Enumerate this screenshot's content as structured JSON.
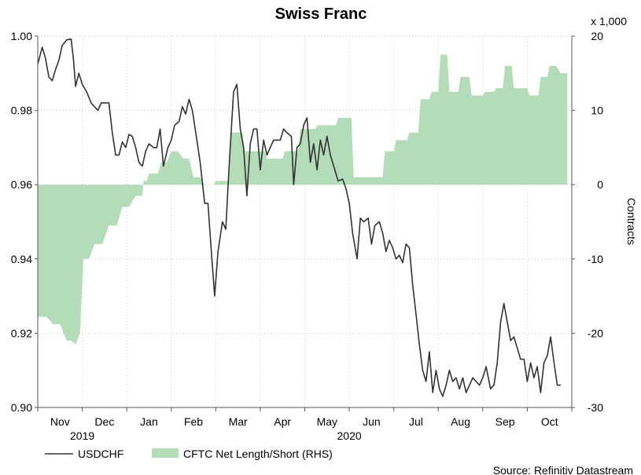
{
  "chart_data": {
    "type": "line",
    "title": "Swiss Franc",
    "source": "Source: Refinitiv Datastream",
    "right_axis_unit": "x 1,000",
    "right_axis_label": "Contracts",
    "left_axis": {
      "min": 0.9,
      "max": 1.0,
      "ticks": [
        "0.90",
        "0.92",
        "0.94",
        "0.96",
        "0.98",
        "1.00"
      ]
    },
    "right_axis": {
      "min": -30,
      "max": 20,
      "ticks": [
        "-30",
        "-20",
        "-10",
        "0",
        "10",
        "20"
      ]
    },
    "months": [
      "Nov",
      "Dec",
      "Jan",
      "Feb",
      "Mar",
      "Apr",
      "May",
      "Jun",
      "Jul",
      "Aug",
      "Sep",
      "Oct"
    ],
    "years": [
      "2019",
      "2020"
    ],
    "legend": {
      "line": "USDCHF",
      "area": "CFTC Net Length/Short (RHS)"
    },
    "colors": {
      "line": "#333333",
      "area": "#b5dcb8",
      "grid": "#cccccc"
    },
    "series_usdchf": [
      [
        0.0,
        0.9925
      ],
      [
        0.2,
        0.997
      ],
      [
        0.35,
        0.994
      ],
      [
        0.5,
        0.989
      ],
      [
        0.65,
        0.988
      ],
      [
        0.8,
        0.991
      ],
      [
        0.95,
        0.9935
      ],
      [
        1.1,
        0.9975
      ],
      [
        1.3,
        0.999
      ],
      [
        1.5,
        0.9992
      ],
      [
        1.6,
        0.994
      ],
      [
        1.7,
        0.9865
      ],
      [
        1.85,
        0.99
      ],
      [
        2.0,
        0.987
      ],
      [
        2.2,
        0.985
      ],
      [
        2.4,
        0.982
      ],
      [
        2.55,
        0.981
      ],
      [
        2.7,
        0.98
      ],
      [
        2.85,
        0.982
      ],
      [
        3.0,
        0.982
      ],
      [
        3.2,
        0.982
      ],
      [
        3.35,
        0.974
      ],
      [
        3.5,
        0.968
      ],
      [
        3.65,
        0.968
      ],
      [
        3.8,
        0.9715
      ],
      [
        3.95,
        0.97
      ],
      [
        4.1,
        0.9735
      ],
      [
        4.25,
        0.973
      ],
      [
        4.4,
        0.97
      ],
      [
        4.55,
        0.966
      ],
      [
        4.7,
        0.965
      ],
      [
        4.85,
        0.969
      ],
      [
        5.0,
        0.971
      ],
      [
        5.2,
        0.97
      ],
      [
        5.35,
        0.97
      ],
      [
        5.5,
        0.975
      ],
      [
        5.65,
        0.965
      ],
      [
        5.85,
        0.97
      ],
      [
        6.0,
        0.972
      ],
      [
        6.15,
        0.976
      ],
      [
        6.35,
        0.977
      ],
      [
        6.5,
        0.981
      ],
      [
        6.65,
        0.979
      ],
      [
        6.8,
        0.983
      ],
      [
        6.95,
        0.98
      ],
      [
        7.1,
        0.974
      ],
      [
        7.3,
        0.966
      ],
      [
        7.5,
        0.955
      ],
      [
        7.65,
        0.955
      ],
      [
        7.8,
        0.942
      ],
      [
        7.95,
        0.93
      ],
      [
        8.1,
        0.942
      ],
      [
        8.3,
        0.95
      ],
      [
        8.45,
        0.948
      ],
      [
        8.6,
        0.965
      ],
      [
        8.8,
        0.985
      ],
      [
        8.95,
        0.987
      ],
      [
        9.1,
        0.975
      ],
      [
        9.25,
        0.97
      ],
      [
        9.4,
        0.957
      ],
      [
        9.55,
        0.971
      ],
      [
        9.7,
        0.975
      ],
      [
        9.85,
        0.975
      ],
      [
        10.0,
        0.964
      ],
      [
        10.15,
        0.972
      ],
      [
        10.3,
        0.968
      ],
      [
        10.45,
        0.97
      ],
      [
        10.6,
        0.972
      ],
      [
        10.75,
        0.972
      ],
      [
        10.9,
        0.972
      ],
      [
        11.05,
        0.975
      ],
      [
        11.2,
        0.974
      ],
      [
        11.4,
        0.973
      ],
      [
        11.5,
        0.96
      ],
      [
        11.65,
        0.97
      ],
      [
        11.8,
        0.971
      ],
      [
        11.95,
        0.976
      ],
      [
        12.1,
        0.978
      ],
      [
        12.25,
        0.966
      ],
      [
        12.4,
        0.971
      ],
      [
        12.55,
        0.964
      ],
      [
        12.7,
        0.972
      ],
      [
        12.85,
        0.968
      ],
      [
        13.0,
        0.973
      ],
      [
        13.15,
        0.968
      ],
      [
        13.35,
        0.964
      ],
      [
        13.5,
        0.961
      ],
      [
        13.7,
        0.9615
      ],
      [
        13.85,
        0.959
      ],
      [
        14.0,
        0.955
      ],
      [
        14.15,
        0.947
      ],
      [
        14.35,
        0.94
      ],
      [
        14.5,
        0.951
      ],
      [
        14.65,
        0.95
      ],
      [
        14.85,
        0.951
      ],
      [
        15.0,
        0.944
      ],
      [
        15.15,
        0.949
      ],
      [
        15.35,
        0.95
      ],
      [
        15.5,
        0.947
      ],
      [
        15.65,
        0.942
      ],
      [
        15.8,
        0.945
      ],
      [
        15.95,
        0.943
      ],
      [
        16.1,
        0.94
      ],
      [
        16.25,
        0.941
      ],
      [
        16.4,
        0.939
      ],
      [
        16.55,
        0.944
      ],
      [
        16.7,
        0.943
      ],
      [
        16.85,
        0.933
      ],
      [
        17.0,
        0.925
      ],
      [
        17.15,
        0.917
      ],
      [
        17.3,
        0.91
      ],
      [
        17.45,
        0.907
      ],
      [
        17.6,
        0.915
      ],
      [
        17.75,
        0.904
      ],
      [
        17.9,
        0.91
      ],
      [
        18.05,
        0.905
      ],
      [
        18.2,
        0.903
      ],
      [
        18.35,
        0.906
      ],
      [
        18.5,
        0.91
      ],
      [
        18.65,
        0.907
      ],
      [
        18.8,
        0.908
      ],
      [
        18.95,
        0.905
      ],
      [
        19.1,
        0.908
      ],
      [
        19.25,
        0.904
      ],
      [
        19.4,
        0.906
      ],
      [
        19.55,
        0.908
      ],
      [
        19.7,
        0.907
      ],
      [
        19.85,
        0.906
      ],
      [
        20.0,
        0.908
      ],
      [
        20.15,
        0.911
      ],
      [
        20.35,
        0.905
      ],
      [
        20.5,
        0.906
      ],
      [
        20.65,
        0.912
      ],
      [
        20.8,
        0.923
      ],
      [
        20.95,
        0.928
      ],
      [
        21.1,
        0.923
      ],
      [
        21.25,
        0.918
      ],
      [
        21.4,
        0.919
      ],
      [
        21.55,
        0.916
      ],
      [
        21.7,
        0.913
      ],
      [
        21.85,
        0.913
      ],
      [
        22.0,
        0.907
      ],
      [
        22.15,
        0.912
      ],
      [
        22.3,
        0.908
      ],
      [
        22.45,
        0.911
      ],
      [
        22.6,
        0.904
      ],
      [
        22.75,
        0.912
      ],
      [
        22.9,
        0.914
      ],
      [
        23.05,
        0.919
      ],
      [
        23.2,
        0.912
      ],
      [
        23.35,
        0.906
      ],
      [
        23.5,
        0.906
      ]
    ],
    "series_cftc": [
      [
        0.0,
        -17.8
      ],
      [
        0.4,
        -17.8
      ],
      [
        0.7,
        -18.8
      ],
      [
        1.0,
        -18.8
      ],
      [
        1.3,
        -21.0
      ],
      [
        1.5,
        -21.0
      ],
      [
        1.7,
        -21.5
      ],
      [
        1.9,
        -20.0
      ],
      [
        2.05,
        -10.0
      ],
      [
        2.3,
        -10.0
      ],
      [
        2.55,
        -8.0
      ],
      [
        2.9,
        -8.0
      ],
      [
        3.2,
        -5.5
      ],
      [
        3.55,
        -5.5
      ],
      [
        3.8,
        -3.0
      ],
      [
        4.1,
        -3.0
      ],
      [
        4.4,
        -1.5
      ],
      [
        4.7,
        -1.5
      ],
      [
        4.75,
        0.5
      ],
      [
        4.9,
        0.5
      ],
      [
        5.0,
        1.5
      ],
      [
        5.4,
        1.5
      ],
      [
        5.55,
        3.0
      ],
      [
        5.8,
        3.0
      ],
      [
        6.0,
        4.5
      ],
      [
        6.3,
        4.5
      ],
      [
        6.55,
        3.5
      ],
      [
        6.8,
        3.5
      ],
      [
        7.0,
        1.0
      ],
      [
        7.3,
        1.0
      ],
      [
        7.5,
        0.0
      ],
      [
        7.9,
        0.0
      ],
      [
        8.0,
        0.5
      ],
      [
        8.6,
        0.5
      ],
      [
        8.7,
        7.0
      ],
      [
        9.2,
        7.0
      ],
      [
        9.3,
        4.5
      ],
      [
        10.2,
        4.5
      ],
      [
        10.3,
        3.5
      ],
      [
        11.0,
        3.5
      ],
      [
        11.1,
        4.5
      ],
      [
        11.7,
        4.5
      ],
      [
        11.8,
        7.5
      ],
      [
        12.5,
        7.5
      ],
      [
        12.55,
        8.0
      ],
      [
        13.4,
        8.0
      ],
      [
        13.5,
        9.0
      ],
      [
        14.1,
        9.0
      ],
      [
        14.2,
        1.0
      ],
      [
        15.5,
        1.0
      ],
      [
        15.6,
        4.5
      ],
      [
        16.0,
        4.5
      ],
      [
        16.1,
        6.0
      ],
      [
        16.6,
        6.0
      ],
      [
        16.7,
        7.0
      ],
      [
        17.1,
        7.0
      ],
      [
        17.2,
        11.5
      ],
      [
        17.6,
        11.5
      ],
      [
        17.7,
        12.5
      ],
      [
        18.0,
        12.5
      ],
      [
        18.1,
        17.5
      ],
      [
        18.4,
        17.5
      ],
      [
        18.5,
        12.5
      ],
      [
        18.9,
        12.5
      ],
      [
        19.0,
        14.5
      ],
      [
        19.4,
        14.5
      ],
      [
        19.5,
        12.0
      ],
      [
        20.0,
        12.0
      ],
      [
        20.1,
        12.5
      ],
      [
        20.5,
        12.5
      ],
      [
        20.6,
        13.0
      ],
      [
        20.9,
        13.0
      ],
      [
        21.0,
        16.0
      ],
      [
        21.3,
        16.0
      ],
      [
        21.4,
        13.0
      ],
      [
        22.0,
        13.0
      ],
      [
        22.1,
        12.0
      ],
      [
        22.5,
        12.0
      ],
      [
        22.6,
        14.5
      ],
      [
        22.9,
        14.5
      ],
      [
        23.0,
        16.0
      ],
      [
        23.3,
        16.0
      ],
      [
        23.5,
        15.0
      ],
      [
        23.8,
        15.0
      ]
    ]
  }
}
